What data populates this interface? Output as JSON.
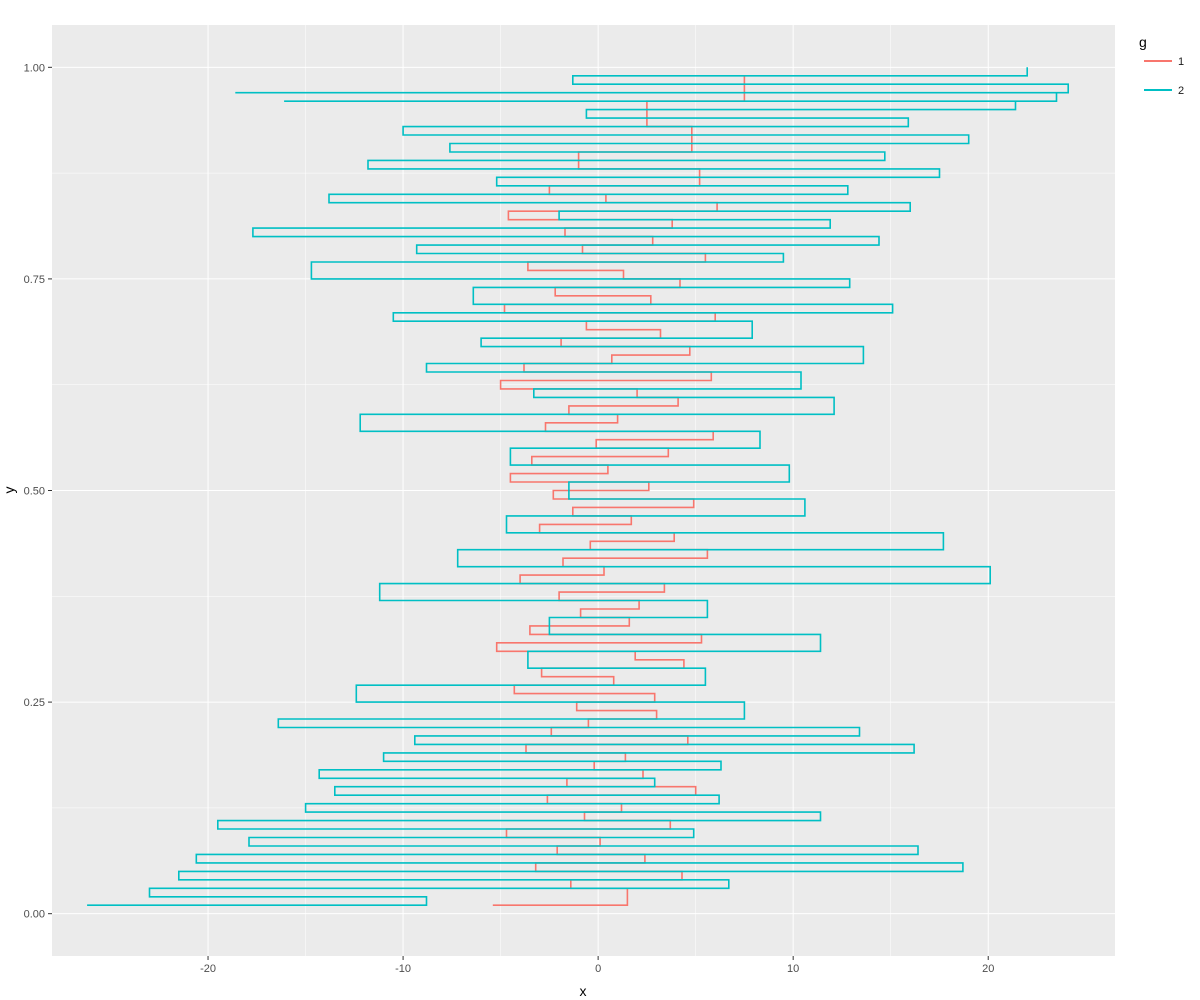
{
  "chart_data": {
    "type": "line",
    "subtype": "step",
    "xlabel": "x",
    "ylabel": "y",
    "xlim": [
      -28,
      26.5
    ],
    "ylim": [
      -0.05,
      1.05
    ],
    "xticks": [
      -20,
      -10,
      0,
      10,
      20
    ],
    "xtick_labels": [
      "-20",
      "-10",
      "0",
      "10",
      "20"
    ],
    "yticks": [
      0,
      0.25,
      0.5,
      0.75,
      1.0
    ],
    "ytick_labels": [
      "0.00",
      "0.25",
      "0.50",
      "0.75",
      "1.00"
    ],
    "grid": true,
    "legend": {
      "title": "g",
      "position": "right",
      "entries": [
        "1",
        "2"
      ]
    },
    "colors": {
      "1": "#F8766D",
      "2": "#00BFC4",
      "panel": "#EBEBEB",
      "grid": "#FFFFFF"
    },
    "series": [
      {
        "name": "1",
        "color": "#F8766D",
        "x": [
          -5.4,
          1.5,
          -1.4,
          4.3,
          -3.2,
          2.4,
          -2.1,
          0.1,
          -4.7,
          3.7,
          -0.7,
          1.2,
          -2.6,
          5.0,
          -1.6,
          2.3,
          -0.2,
          1.4,
          -3.7,
          4.6,
          -2.4,
          -0.5,
          3.0,
          -1.1,
          2.9,
          -4.3,
          0.8,
          -2.9,
          4.4,
          1.9,
          -5.2,
          5.3,
          -3.5,
          1.6,
          -0.9,
          2.1,
          -2.0,
          3.4,
          -4.0,
          0.3,
          -1.8,
          5.6,
          -0.4,
          3.9,
          -3.0,
          1.7,
          -1.3,
          4.9,
          -2.3,
          2.6,
          -4.5,
          0.5,
          -3.4,
          3.6,
          -0.1,
          5.9,
          -2.7,
          1.0,
          -1.5,
          4.1,
          2.0,
          -5.0,
          5.8,
          -3.8,
          0.7,
          4.7,
          -1.9,
          3.2,
          -0.6,
          6.0,
          -4.8,
          2.7,
          -2.2,
          4.2,
          1.3,
          -3.6,
          5.5,
          -0.8,
          2.8,
          -1.7,
          3.8,
          -4.6,
          6.1,
          0.4,
          -2.5,
          5.2,
          -1.0,
          4.8,
          2.5,
          7.5
        ],
        "y": [
          0.01,
          0.03,
          0.04,
          0.05,
          0.06,
          0.07,
          0.08,
          0.09,
          0.1,
          0.11,
          0.12,
          0.13,
          0.14,
          0.15,
          0.16,
          0.17,
          0.18,
          0.19,
          0.2,
          0.21,
          0.22,
          0.23,
          0.24,
          0.25,
          0.26,
          0.27,
          0.28,
          0.29,
          0.3,
          0.31,
          0.32,
          0.33,
          0.34,
          0.35,
          0.36,
          0.37,
          0.38,
          0.39,
          0.4,
          0.41,
          0.42,
          0.43,
          0.44,
          0.45,
          0.46,
          0.47,
          0.48,
          0.49,
          0.5,
          0.51,
          0.52,
          0.53,
          0.54,
          0.55,
          0.56,
          0.57,
          0.58,
          0.59,
          0.6,
          0.61,
          0.62,
          0.63,
          0.64,
          0.65,
          0.66,
          0.67,
          0.68,
          0.69,
          0.7,
          0.71,
          0.72,
          0.73,
          0.74,
          0.75,
          0.76,
          0.77,
          0.78,
          0.79,
          0.8,
          0.81,
          0.82,
          0.83,
          0.84,
          0.85,
          0.86,
          0.88,
          0.9,
          0.93,
          0.96,
          0.99
        ]
      },
      {
        "name": "2",
        "color": "#00BFC4",
        "x": [
          -26.2,
          -8.8,
          -23.0,
          6.7,
          -21.5,
          18.7,
          -20.6,
          16.4,
          -17.9,
          4.9,
          -19.5,
          11.4,
          -15.0,
          6.2,
          -13.5,
          2.9,
          -14.3,
          6.3,
          -11.0,
          16.2,
          -9.4,
          13.4,
          -16.4,
          7.5,
          -12.4,
          5.5,
          -3.6,
          11.4,
          -2.5,
          5.6,
          -11.2,
          20.1,
          -7.2,
          17.7,
          -4.7,
          10.6,
          -1.5,
          9.8,
          -4.5,
          8.3,
          -12.2,
          12.1,
          -3.3,
          10.4,
          -8.8,
          13.6,
          -6.0,
          7.9,
          -10.5,
          15.1,
          -6.4,
          12.9,
          -14.7,
          9.5,
          -9.3,
          14.4,
          -17.7,
          11.9,
          -2.0,
          16.0,
          -13.8,
          12.8,
          -5.2,
          17.5,
          -11.8,
          14.7,
          -7.6,
          19.0,
          -10.0,
          15.9,
          -0.6,
          21.4,
          -16.1,
          23.5,
          -18.6,
          24.1,
          -1.3,
          22.0
        ],
        "y": [
          0.01,
          0.02,
          0.03,
          0.04,
          0.05,
          0.06,
          0.07,
          0.08,
          0.09,
          0.1,
          0.11,
          0.12,
          0.13,
          0.14,
          0.15,
          0.16,
          0.17,
          0.18,
          0.19,
          0.2,
          0.21,
          0.22,
          0.23,
          0.25,
          0.27,
          0.29,
          0.31,
          0.33,
          0.35,
          0.37,
          0.39,
          0.41,
          0.43,
          0.45,
          0.47,
          0.49,
          0.51,
          0.53,
          0.55,
          0.57,
          0.59,
          0.61,
          0.62,
          0.64,
          0.65,
          0.67,
          0.68,
          0.7,
          0.71,
          0.72,
          0.74,
          0.75,
          0.77,
          0.78,
          0.79,
          0.8,
          0.81,
          0.82,
          0.83,
          0.84,
          0.85,
          0.86,
          0.87,
          0.88,
          0.89,
          0.9,
          0.91,
          0.92,
          0.93,
          0.94,
          0.95,
          0.96,
          0.96,
          0.97,
          0.97,
          0.98,
          0.99,
          1.0
        ]
      }
    ]
  }
}
